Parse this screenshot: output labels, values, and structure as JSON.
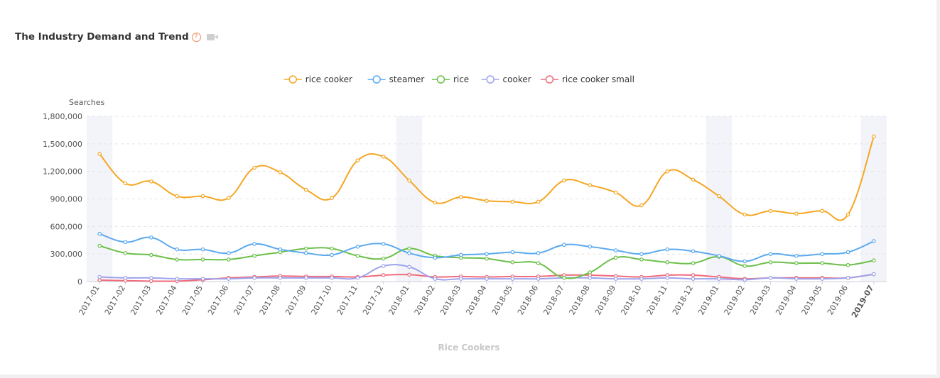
{
  "header": {
    "title": "The Industry Demand and Trend",
    "help_icon": "question-circle-icon",
    "video_icon": "video-camera-icon"
  },
  "chart_data": {
    "type": "line",
    "xlabel": "Rice Cookers",
    "ylabel": "Searches",
    "ylim": [
      0,
      1800000
    ],
    "yticks": [
      "0",
      "300,000",
      "600,000",
      "900,000",
      "1,200,000",
      "1,500,000",
      "1,800,000"
    ],
    "grid": true,
    "legend_position": "top-center",
    "categories": [
      "2017-01",
      "2017-02",
      "2017-03",
      "2017-04",
      "2017-05",
      "2017-06",
      "2017-07",
      "2017-08",
      "2017-09",
      "2017-10",
      "2017-11",
      "2017-12",
      "2018-01",
      "2018-02",
      "2018-03",
      "2018-04",
      "2018-05",
      "2018-06",
      "2018-07",
      "2018-08",
      "2018-09",
      "2018-10",
      "2018-11",
      "2018-12",
      "2019-01",
      "2019-02",
      "2019-03",
      "2019-04",
      "2019-05",
      "2019-06",
      "2019-07"
    ],
    "shaded_months": [
      "2017-01",
      "2018-01",
      "2019-01",
      "2019-07"
    ],
    "series": [
      {
        "name": "rice cooker",
        "color": "#f5a623",
        "values": [
          1390000,
          1070000,
          1090000,
          930000,
          930000,
          910000,
          1240000,
          1190000,
          1000000,
          910000,
          1320000,
          1360000,
          1100000,
          860000,
          920000,
          880000,
          870000,
          870000,
          1100000,
          1050000,
          970000,
          830000,
          1200000,
          1110000,
          930000,
          730000,
          770000,
          740000,
          770000,
          730000,
          1580000
        ]
      },
      {
        "name": "steamer",
        "color": "#5aa9f0",
        "values": [
          520000,
          430000,
          480000,
          350000,
          350000,
          310000,
          410000,
          350000,
          310000,
          290000,
          380000,
          410000,
          310000,
          260000,
          290000,
          300000,
          320000,
          310000,
          400000,
          380000,
          340000,
          300000,
          350000,
          330000,
          280000,
          220000,
          300000,
          280000,
          300000,
          320000,
          440000
        ]
      },
      {
        "name": "rice",
        "color": "#6cc04a",
        "values": [
          390000,
          310000,
          290000,
          240000,
          240000,
          240000,
          280000,
          320000,
          360000,
          360000,
          280000,
          250000,
          360000,
          280000,
          260000,
          250000,
          210000,
          200000,
          40000,
          100000,
          260000,
          240000,
          210000,
          200000,
          270000,
          170000,
          210000,
          200000,
          200000,
          180000,
          230000
        ]
      },
      {
        "name": "cooker",
        "color": "#9da3ec",
        "values": [
          50000,
          40000,
          40000,
          30000,
          30000,
          30000,
          40000,
          40000,
          40000,
          40000,
          40000,
          170000,
          160000,
          30000,
          30000,
          30000,
          30000,
          30000,
          40000,
          40000,
          30000,
          30000,
          40000,
          30000,
          30000,
          20000,
          40000,
          30000,
          30000,
          40000,
          80000
        ]
      },
      {
        "name": "rice cooker small",
        "color": "#f06b7b",
        "values": [
          15000,
          10000,
          5000,
          5000,
          20000,
          40000,
          50000,
          60000,
          55000,
          55000,
          50000,
          70000,
          75000,
          50000,
          55000,
          50000,
          55000,
          55000,
          70000,
          70000,
          60000,
          50000,
          70000,
          70000,
          50000,
          30000,
          40000,
          40000,
          40000,
          40000,
          80000
        ]
      }
    ]
  }
}
